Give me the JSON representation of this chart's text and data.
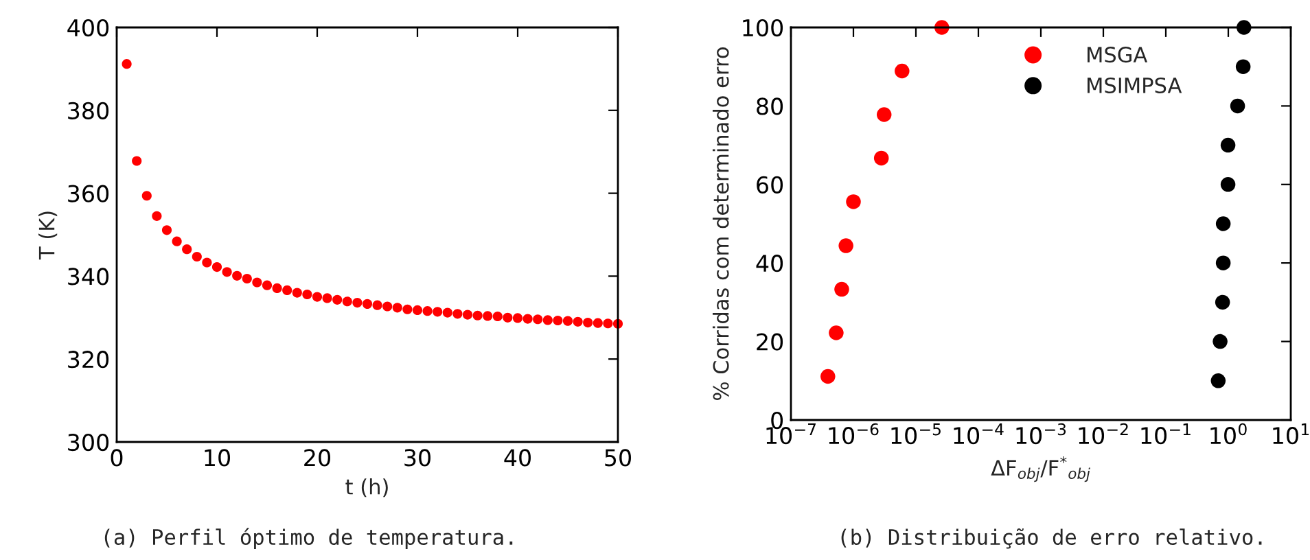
{
  "chart_data": [
    {
      "type": "scatter",
      "xlabel": "t (h)",
      "ylabel": "T (K)",
      "annotations": [
        "(a) Perfil óptimo de temperatura."
      ],
      "xlim": [
        0,
        50
      ],
      "ylim": [
        300,
        400
      ],
      "xticks": [
        0,
        10,
        20,
        30,
        40,
        50
      ],
      "yticks": [
        300,
        320,
        340,
        360,
        380,
        400
      ],
      "grid": false,
      "marker": "circle",
      "series": [
        {
          "color": "#ff0000",
          "x": [
            1,
            2,
            3,
            4,
            5,
            6,
            7,
            8,
            9,
            10,
            11,
            12,
            13,
            14,
            15,
            16,
            17,
            18,
            19,
            20,
            21,
            22,
            23,
            24,
            25,
            26,
            27,
            28,
            29,
            30,
            31,
            32,
            33,
            34,
            35,
            36,
            37,
            38,
            39,
            40,
            41,
            42,
            43,
            44,
            45,
            46,
            47,
            48,
            49,
            50
          ],
          "values": [
            391.2,
            367.8,
            359.4,
            354.5,
            351.1,
            348.4,
            346.5,
            344.7,
            343.3,
            342.2,
            341.0,
            340.1,
            339.4,
            338.5,
            337.8,
            337.1,
            336.6,
            336.0,
            335.6,
            335.0,
            334.7,
            334.3,
            333.9,
            333.6,
            333.3,
            333.0,
            332.7,
            332.4,
            332.0,
            331.8,
            331.6,
            331.4,
            331.2,
            330.9,
            330.7,
            330.5,
            330.4,
            330.3,
            330.0,
            329.9,
            329.7,
            329.6,
            329.4,
            329.3,
            329.2,
            329.0,
            328.8,
            328.7,
            328.6,
            328.5
          ]
        }
      ]
    },
    {
      "type": "scatter",
      "xlabel": "ΔF$_{obj}$/F$^{*}$$_{obj}$",
      "ylabel": "% Corridas com determinado erro",
      "annotations": [
        "(b) Distribuição de erro relativo."
      ],
      "log": "x",
      "xlim": [
        1e-07,
        10
      ],
      "ylim": [
        0,
        100
      ],
      "xticks": [
        {
          "value": 1e-07,
          "label": "10$^{−7}$"
        },
        {
          "value": 1e-06,
          "label": "10$^{−6}$"
        },
        {
          "value": 1e-05,
          "label": "10$^{−5}$"
        },
        {
          "value": 0.0001,
          "label": "10$^{−4}$"
        },
        {
          "value": 0.001,
          "label": "10$^{−3}$"
        },
        {
          "value": 0.01,
          "label": "10$^{−2}$"
        },
        {
          "value": 0.1,
          "label": "10$^{−1}$"
        },
        {
          "value": 1,
          "label": "10$^{0}$"
        },
        {
          "value": 10,
          "label": "10$^{1}$"
        }
      ],
      "yticks": [
        0,
        20,
        40,
        60,
        80,
        100
      ],
      "grid": false,
      "legend": "top right",
      "marker": "circle",
      "series": [
        {
          "name": "MSGA",
          "color": "#ff0000",
          "x": [
            3.9e-07,
            5.3e-07,
            6.5e-07,
            7.6e-07,
            1e-06,
            2.8e-06,
            3.1e-06,
            6e-06,
            2.6e-05
          ],
          "values": [
            11.1,
            22.2,
            33.3,
            44.4,
            55.6,
            66.7,
            77.8,
            88.9,
            100
          ]
        },
        {
          "name": "MSIMPSA",
          "color": "#000000",
          "x": [
            0.69,
            0.74,
            0.81,
            0.83,
            0.83,
            0.99,
            0.99,
            1.41,
            1.73,
            1.78
          ],
          "values": [
            10,
            20,
            30,
            40,
            50,
            60,
            70,
            80,
            90,
            100
          ]
        }
      ]
    }
  ]
}
